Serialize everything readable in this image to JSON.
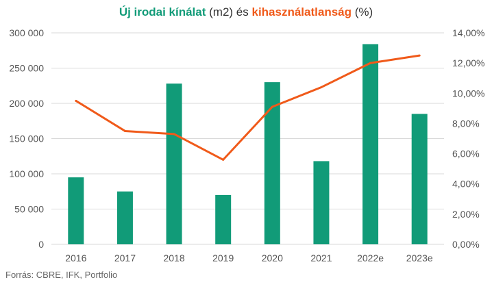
{
  "title": {
    "part1": "Új irodai kínálat",
    "part2": " (m2) ",
    "part3": "és",
    "part4": " ",
    "part5": "kihasználatlanság",
    "part6": " (%)"
  },
  "source": "Forrás: CBRE, IFK, Portfolio",
  "colors": {
    "bars": "#119b78",
    "line": "#f05a1a",
    "grid": "#d9d9d9"
  },
  "chart_data": {
    "type": "bar",
    "categories": [
      "2016",
      "2017",
      "2018",
      "2019",
      "2020",
      "2021",
      "2022e",
      "2023e"
    ],
    "series": [
      {
        "type": "bar",
        "axis": "left",
        "values": [
          95000,
          75000,
          228000,
          70000,
          230000,
          118000,
          284000,
          185000
        ]
      },
      {
        "type": "line",
        "axis": "right",
        "values": [
          9.5,
          7.5,
          7.3,
          5.6,
          9.1,
          10.4,
          12.0,
          12.5
        ]
      }
    ],
    "ylim_left": [
      0,
      300000
    ],
    "ylim_right": [
      0,
      14
    ],
    "yticks_left": [
      "0",
      "50 000",
      "100 000",
      "150 000",
      "200 000",
      "250 000",
      "300 000"
    ],
    "yticks_right": [
      "0,00%",
      "2,00%",
      "4,00%",
      "6,00%",
      "8,00%",
      "10,00%",
      "12,00%",
      "14,00%"
    ],
    "grid": true,
    "legend": "none"
  }
}
